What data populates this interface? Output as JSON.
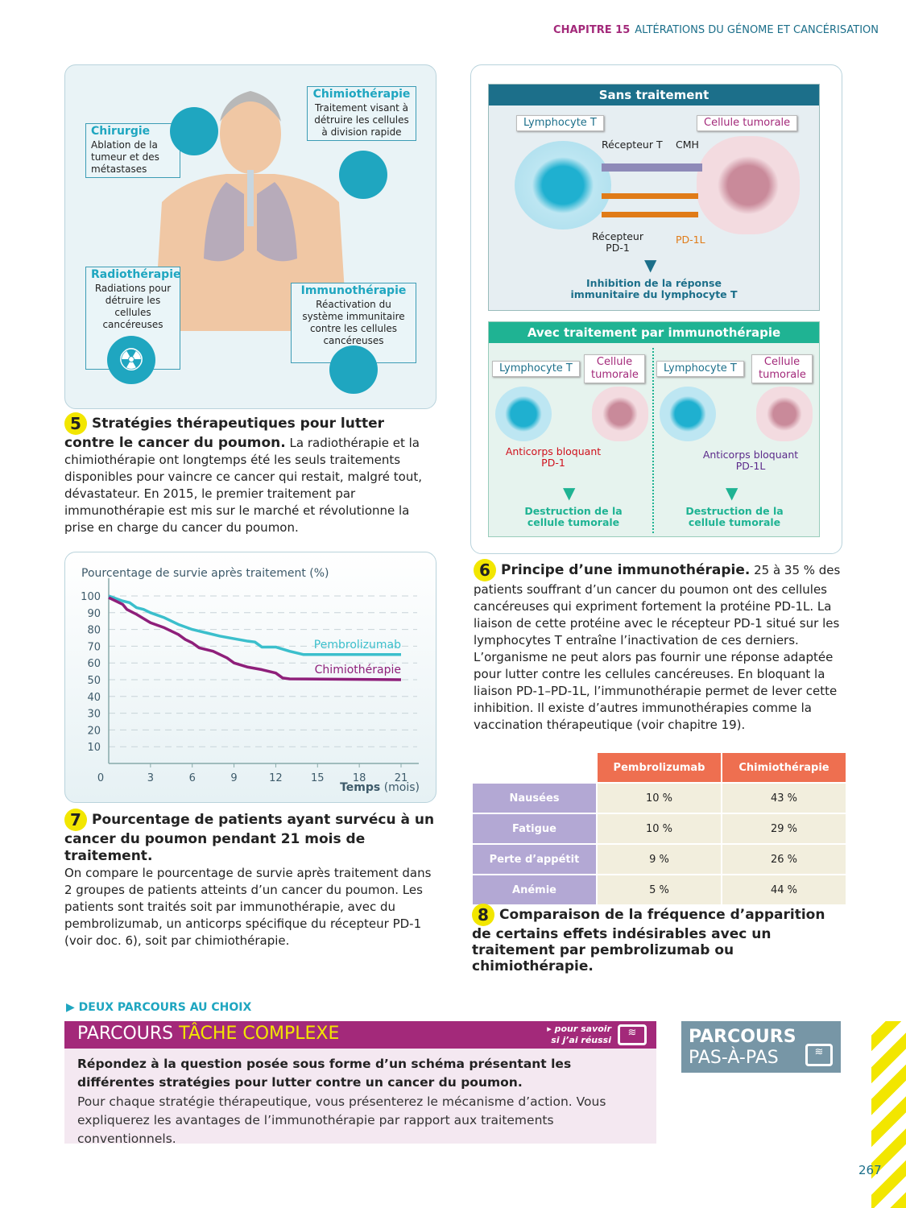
{
  "header": {
    "chapter": "CHAPITRE 15",
    "title": "ALTÉRATIONS DU GÉNOME ET CANCÉRISATION"
  },
  "doc5": {
    "labels": {
      "chirurgie": {
        "title": "Chirurgie",
        "text": "Ablation de la tumeur et des métastases"
      },
      "chimio": {
        "title": "Chimiothérapie",
        "text": "Traitement visant à détruire les cellules à division rapide"
      },
      "radio": {
        "title": "Radiothérapie",
        "text": "Radiations pour détruire les cellules cancéreuses"
      },
      "immuno": {
        "title": "Immunothérapie",
        "text": "Réactivation du système immunitaire contre les cellules cancéreuses"
      }
    },
    "number": "5",
    "caption_title": "Stratégies thérapeutiques pour lutter contre le cancer du poumon.",
    "caption_text": "La radiothérapie et la chimiothérapie ont longtemps été les seuls traitements disponibles pour vaincre ce cancer qui restait, malgré tout, dévastateur. En 2015, le premier traitement par immunothérapie est mis sur le marché et révolutionne la prise en charge du cancer du poumon."
  },
  "doc6": {
    "sans": {
      "title": "Sans traitement",
      "lympho": "Lymphocyte T",
      "tumor": "Cellule tumorale",
      "recepteur_t": "Récepteur T",
      "cmh": "CMH",
      "recepteur_pd1": "Récepteur PD-1",
      "pd1l": "PD-1L",
      "result": "Inhibition de la réponse immunitaire du lymphocyte T"
    },
    "avec": {
      "title": "Avec traitement par immunothérapie",
      "lympho": "Lymphocyte T",
      "tumor": "Cellule tumorale",
      "ab1": "Anticorps bloquant PD-1",
      "ab2": "Anticorps bloquant PD-1L",
      "result": "Destruction de la cellule tumorale"
    },
    "number": "6",
    "caption_title": "Principe d’une immunothérapie.",
    "caption_text": "25 à 35 % des patients souffrant d’un cancer du poumon ont des cellules cancéreuses qui expriment fortement la protéine PD-1L. La liaison de cette protéine avec le récepteur PD-1 situé sur les lymphocytes T entraîne l’inactivation de ces derniers. L’organisme ne peut alors pas fournir une réponse adaptée pour lutter contre les cellules cancéreuses. En bloquant la liaison PD-1–PD-1L, l’immunothérapie permet de lever cette inhibition. Il existe d’autres immunothérapies comme la vaccination thérapeutique (voir chapitre 19)."
  },
  "chart_data": {
    "type": "line",
    "title": "Pourcentage de survie après traitement (%)",
    "xlabel_bold": "Temps",
    "xlabel_unit": "(mois)",
    "xlim": [
      0,
      21
    ],
    "ylim": [
      0,
      100
    ],
    "xticks": [
      0,
      3,
      6,
      9,
      12,
      15,
      18,
      21
    ],
    "yticks": [
      10,
      20,
      30,
      40,
      50,
      60,
      70,
      80,
      90,
      100
    ],
    "grid": "horizontal dashed",
    "series": [
      {
        "name": "Pembrolizumab",
        "color": "#3bbfcc",
        "x": [
          0,
          1,
          1.5,
          2,
          2.5,
          3,
          4,
          5,
          6,
          7,
          8,
          9,
          10,
          10.5,
          11,
          12,
          13,
          14,
          21
        ],
        "y": [
          100,
          97,
          96,
          93,
          92,
          90,
          87,
          83,
          80,
          78,
          76,
          74.5,
          73,
          72.5,
          69.5,
          69.5,
          67,
          65,
          65
        ]
      },
      {
        "name": "Chimiothérapie",
        "color": "#8e1f7a",
        "x": [
          0,
          1,
          1.3,
          2,
          3,
          4,
          5,
          5.5,
          6,
          6.5,
          7.5,
          8.5,
          9,
          10,
          11,
          12,
          12.5,
          13,
          21
        ],
        "y": [
          99,
          95,
          92,
          89,
          84,
          81,
          77,
          74,
          72,
          69,
          67,
          63,
          60,
          57.5,
          56,
          54,
          51,
          50.5,
          50
        ]
      }
    ]
  },
  "doc7": {
    "number": "7",
    "caption_title": "Pourcentage de patients ayant survécu à un cancer du poumon pendant 21 mois de traitement.",
    "caption_text": "On compare le pourcentage de survie après traitement dans 2 groupes de patients atteints d’un cancer du poumon. Les patients sont traités soit par immunothérapie, avec du pembrolizumab, un anticorps spécifique du récepteur PD-1 (voir doc. 6), soit par chimiothérapie."
  },
  "doc8": {
    "columns": [
      "Pembrolizumab",
      "Chimiothérapie"
    ],
    "rows": [
      {
        "label": "Nausées",
        "values": [
          "10 %",
          "43 %"
        ]
      },
      {
        "label": "Fatigue",
        "values": [
          "10 %",
          "29 %"
        ]
      },
      {
        "label": "Perte d’appétit",
        "values": [
          "9 %",
          "26 %"
        ]
      },
      {
        "label": "Anémie",
        "values": [
          "5 %",
          "44 %"
        ]
      }
    ],
    "number": "8",
    "caption_title": "Comparaison de la fréquence d’apparition de certains effets indésirables avec un traitement par pembrolizumab ou chimiothérapie."
  },
  "parcours": {
    "heading": "DEUX PARCOURS AU CHOIX",
    "complex_a": "PARCOURS",
    "complex_b": "TÂCHE COMPLEXE",
    "check_a": "▸ pour savoir",
    "check_b": "si j’ai réussi",
    "question": "Répondez à la question posée sous forme d’un schéma présentant les différentes stratégies pour lutter contre un cancer du poumon.",
    "instructions": "Pour chaque stratégie thérapeutique, vous présenterez le mécanisme d’action. Vous expliquerez les avantages de l’immunothérapie par rapport aux traitements conventionnels.",
    "step_a": "PARCOURS",
    "step_b": "PAS-À-PAS"
  },
  "page_number": "267"
}
